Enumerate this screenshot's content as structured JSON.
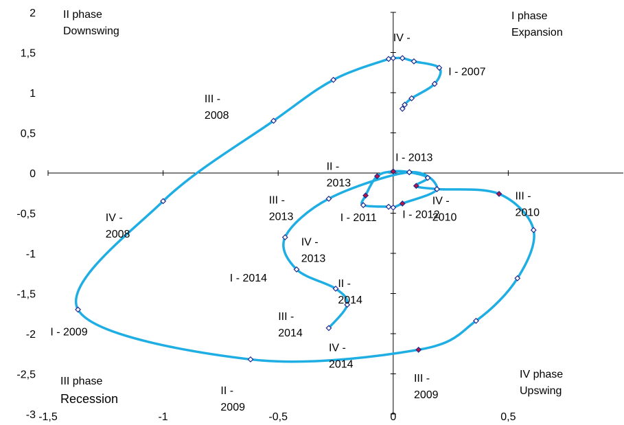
{
  "chart_data": {
    "type": "line",
    "xlim": [
      -1.5,
      1.0
    ],
    "ylim": [
      -3.0,
      2.0
    ],
    "x_ticks": [
      {
        "value": -1.5,
        "label": "-1,5"
      },
      {
        "value": -1.0,
        "label": "-1"
      },
      {
        "value": -0.5,
        "label": "-0,5"
      },
      {
        "value": 0.0,
        "label": "0"
      },
      {
        "value": 0.5,
        "label": "0,5"
      }
    ],
    "y_ticks": [
      {
        "value": 2.0,
        "label": "2"
      },
      {
        "value": 1.5,
        "label": "1,5"
      },
      {
        "value": 1.0,
        "label": "1"
      },
      {
        "value": 0.5,
        "label": "0,5"
      },
      {
        "value": 0.0,
        "label": "0"
      },
      {
        "value": -0.5,
        "label": "-0,5"
      },
      {
        "value": -1.0,
        "label": "-1"
      },
      {
        "value": -1.5,
        "label": "-1,5"
      },
      {
        "value": -2.0,
        "label": "-2"
      },
      {
        "value": -2.5,
        "label": "-2,5"
      },
      {
        "value": -3.0,
        "label": "-3"
      }
    ],
    "grid": false,
    "line_color": "#1FAEE3",
    "marker_color_open": "#ffffff",
    "marker_color_filled": "#C0143C",
    "marker_edge_color": "#1F2A8C",
    "points": [
      {
        "x": 0.04,
        "y": 0.8,
        "filled": false
      },
      {
        "x": 0.05,
        "y": 0.85,
        "filled": false
      },
      {
        "x": 0.08,
        "y": 0.93,
        "filled": false
      },
      {
        "x": 0.18,
        "y": 1.11,
        "filled": false
      },
      {
        "x": 0.2,
        "y": 1.31,
        "filled": false
      },
      {
        "x": 0.09,
        "y": 1.39,
        "filled": false
      },
      {
        "x": 0.04,
        "y": 1.43,
        "filled": false
      },
      {
        "x": 0.0,
        "y": 1.43,
        "filled": false
      },
      {
        "x": -0.02,
        "y": 1.42,
        "filled": false
      },
      {
        "x": -0.26,
        "y": 1.16,
        "filled": false
      },
      {
        "x": -0.52,
        "y": 0.65,
        "filled": false
      },
      {
        "x": -1.0,
        "y": -0.35,
        "filled": false
      },
      {
        "x": -1.37,
        "y": -1.7,
        "filled": false
      },
      {
        "x": -0.62,
        "y": -2.32,
        "filled": false
      },
      {
        "x": 0.11,
        "y": -2.2,
        "filled": true
      },
      {
        "x": 0.36,
        "y": -1.84,
        "filled": false
      },
      {
        "x": 0.54,
        "y": -1.31,
        "filled": false
      },
      {
        "x": 0.61,
        "y": -0.71,
        "filled": false
      },
      {
        "x": 0.46,
        "y": -0.26,
        "filled": true
      },
      {
        "x": 0.19,
        "y": -0.2,
        "filled": false
      },
      {
        "x": 0.1,
        "y": -0.16,
        "filled": true
      },
      {
        "x": 0.15,
        "y": -0.06,
        "filled": false
      },
      {
        "x": 0.07,
        "y": 0.01,
        "filled": false
      },
      {
        "x": 0.0,
        "y": 0.02,
        "filled": true
      },
      {
        "x": -0.07,
        "y": -0.04,
        "filled": true
      },
      {
        "x": -0.12,
        "y": -0.28,
        "filled": true
      },
      {
        "x": -0.13,
        "y": -0.4,
        "filled": false
      },
      {
        "x": -0.02,
        "y": -0.42,
        "filled": false
      },
      {
        "x": 0.0,
        "y": -0.43,
        "filled": false
      },
      {
        "x": 0.04,
        "y": -0.38,
        "filled": true
      },
      {
        "x": 0.19,
        "y": -0.2,
        "filled": false
      },
      {
        "x": 0.07,
        "y": 0.01,
        "filled": false
      },
      {
        "x": -0.28,
        "y": -0.32,
        "filled": false
      },
      {
        "x": -0.47,
        "y": -0.8,
        "filled": false
      },
      {
        "x": -0.42,
        "y": -1.2,
        "filled": false
      },
      {
        "x": -0.25,
        "y": -1.44,
        "filled": false
      },
      {
        "x": -0.2,
        "y": -1.64,
        "filled": false
      },
      {
        "x": -0.28,
        "y": -1.93,
        "filled": false
      }
    ],
    "point_labels": [
      {
        "lines": [
          "I - 2007"
        ],
        "x": 0.24,
        "y": 1.22
      },
      {
        "lines": [
          "IV -"
        ],
        "x": 0.0,
        "y": 1.64
      },
      {
        "lines": [
          "III -",
          "2008"
        ],
        "x": -0.82,
        "y": 0.88
      },
      {
        "lines": [
          "IV -",
          "2008"
        ],
        "x": -1.25,
        "y": -0.6
      },
      {
        "lines": [
          "I - 2009"
        ],
        "x": -1.49,
        "y": -2.02
      },
      {
        "lines": [
          "II -",
          "2009"
        ],
        "x": -0.75,
        "y": -2.75
      },
      {
        "lines": [
          "III -",
          "2009"
        ],
        "x": 0.09,
        "y": -2.6
      },
      {
        "lines": [
          "IV -",
          "2010"
        ],
        "x": 0.17,
        "y": -0.39
      },
      {
        "lines": [
          "III -",
          "2010"
        ],
        "x": 0.53,
        "y": -0.33
      },
      {
        "lines": [
          "I - 2011"
        ],
        "x": -0.23,
        "y": -0.6
      },
      {
        "lines": [
          "I - 2012"
        ],
        "x": 0.04,
        "y": -0.56
      },
      {
        "lines": [
          "I - 2013"
        ],
        "x": 0.01,
        "y": 0.15
      },
      {
        "lines": [
          "II -",
          "2013"
        ],
        "x": -0.29,
        "y": 0.04
      },
      {
        "lines": [
          "III -",
          "2013"
        ],
        "x": -0.54,
        "y": -0.38
      },
      {
        "lines": [
          "IV -",
          "2013"
        ],
        "x": -0.4,
        "y": -0.9
      },
      {
        "lines": [
          "I - 2014"
        ],
        "x": -0.71,
        "y": -1.35
      },
      {
        "lines": [
          "II -",
          "2014"
        ],
        "x": -0.24,
        "y": -1.42
      },
      {
        "lines": [
          "III -",
          "2014"
        ],
        "x": -0.5,
        "y": -1.83
      },
      {
        "lines": [
          "IV -",
          "2014"
        ],
        "x": -0.28,
        "y": -2.22
      }
    ],
    "quadrants": {
      "top_left": [
        "II  phase",
        "Downswing"
      ],
      "top_right": [
        "I phase",
        "Expansion"
      ],
      "bottom_left": [
        "III phase",
        "Recession"
      ],
      "bottom_right": [
        "IV phase",
        "Upswing"
      ]
    }
  }
}
